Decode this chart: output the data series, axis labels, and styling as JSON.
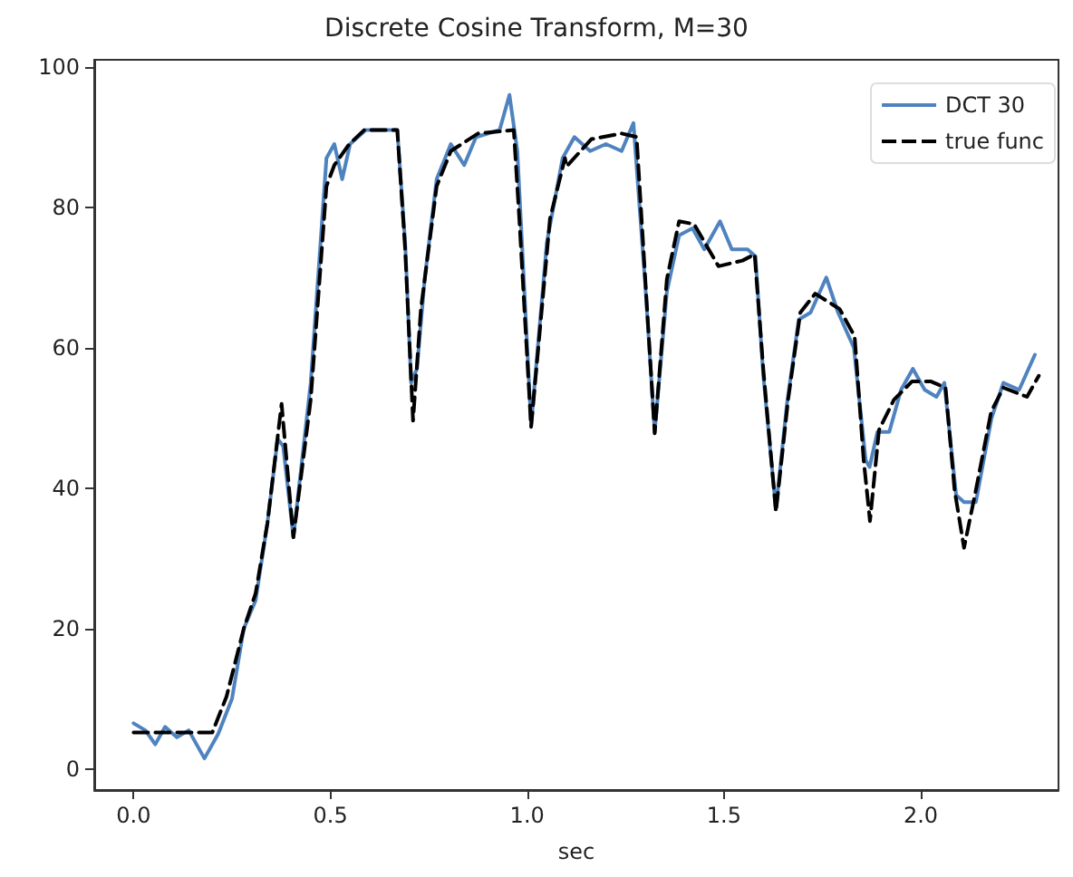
{
  "chart_data": {
    "type": "line",
    "title": "Discrete Cosine Transform, M=30",
    "xlabel": "sec",
    "xlim": [
      -0.1,
      2.35
    ],
    "ylim": [
      -3,
      101
    ],
    "xticks": [
      {
        "value": 0,
        "label": "0.0"
      },
      {
        "value": 0.5,
        "label": "0.5"
      },
      {
        "value": 1,
        "label": "1.0"
      },
      {
        "value": 1.5,
        "label": "1.5"
      },
      {
        "value": 2,
        "label": "2.0"
      }
    ],
    "yticks": [
      0,
      20,
      40,
      60,
      80,
      100
    ],
    "grid": false,
    "legend": "top right",
    "marker": "none",
    "series": [
      {
        "name": "DCT 30",
        "color": "#4f83bf",
        "line_style": "solid",
        "x": [
          0,
          0.03,
          0.055,
          0.08,
          0.11,
          0.14,
          0.18,
          0.215,
          0.25,
          0.28,
          0.31,
          0.34,
          0.366,
          0.38,
          0.406,
          0.45,
          0.49,
          0.51,
          0.53,
          0.55,
          0.59,
          0.67,
          0.69,
          0.705,
          0.72,
          0.74,
          0.77,
          0.806,
          0.84,
          0.87,
          0.93,
          0.955,
          0.975,
          1.01,
          1.05,
          1.09,
          1.12,
          1.16,
          1.2,
          1.24,
          1.27,
          1.3,
          1.324,
          1.355,
          1.386,
          1.42,
          1.45,
          1.49,
          1.52,
          1.56,
          1.58,
          1.6,
          1.632,
          1.66,
          1.69,
          1.72,
          1.76,
          1.79,
          1.83,
          1.86,
          1.87,
          1.89,
          1.92,
          1.95,
          1.98,
          2.01,
          2.04,
          2.06,
          2.09,
          2.11,
          2.14,
          2.18,
          2.21,
          2.25,
          2.29
        ],
        "values": [
          6.5,
          5.5,
          3.5,
          6,
          4.5,
          5.5,
          1.5,
          5,
          10,
          20,
          24,
          35,
          47,
          46,
          33,
          55,
          87,
          89,
          84,
          89,
          91,
          91,
          75,
          55,
          57,
          70,
          84,
          89,
          86,
          90,
          91,
          96,
          88,
          49,
          75,
          87,
          90,
          88,
          89,
          88,
          92,
          69,
          48,
          68,
          76,
          77,
          74,
          78,
          74,
          74,
          73,
          56,
          37,
          52,
          64,
          65,
          70,
          65,
          60,
          44,
          43,
          48,
          48,
          54,
          57,
          54,
          53,
          55,
          39,
          38,
          38,
          50,
          55,
          54,
          59
        ]
      },
      {
        "name": "true func",
        "color": "#000000",
        "line_style": "dashed",
        "x": [
          0,
          0.05,
          0.145,
          0.2,
          0.236,
          0.28,
          0.31,
          0.34,
          0.376,
          0.406,
          0.45,
          0.49,
          0.51,
          0.548,
          0.586,
          0.67,
          0.69,
          0.71,
          0.73,
          0.77,
          0.806,
          0.875,
          0.966,
          0.98,
          1.01,
          1.058,
          1.096,
          1.1,
          1.163,
          1.24,
          1.278,
          1.3,
          1.324,
          1.355,
          1.386,
          1.424,
          1.486,
          1.547,
          1.578,
          1.6,
          1.632,
          1.663,
          1.694,
          1.732,
          1.794,
          1.832,
          1.855,
          1.871,
          1.894,
          1.932,
          1.978,
          2.025,
          2.063,
          2.086,
          2.11,
          2.14,
          2.179,
          2.21,
          2.27,
          2.3
        ],
        "values": [
          5.2,
          5.2,
          5.2,
          5.2,
          10.3,
          20,
          25,
          35,
          52,
          33,
          52.6,
          83,
          86,
          89,
          91,
          91,
          74,
          49.6,
          65.5,
          83,
          88,
          90.5,
          91,
          78.4,
          48.7,
          78.4,
          87,
          85.8,
          89.7,
          90.5,
          90,
          69.8,
          47.8,
          69.8,
          78,
          77.6,
          71.6,
          72.4,
          73.3,
          56.9,
          36.6,
          52.6,
          65,
          67.7,
          65.5,
          61.6,
          44,
          35.3,
          48.3,
          52.6,
          55.2,
          55.2,
          54.3,
          39.7,
          31.5,
          39.7,
          50.9,
          54.3,
          53,
          56
        ]
      }
    ]
  }
}
